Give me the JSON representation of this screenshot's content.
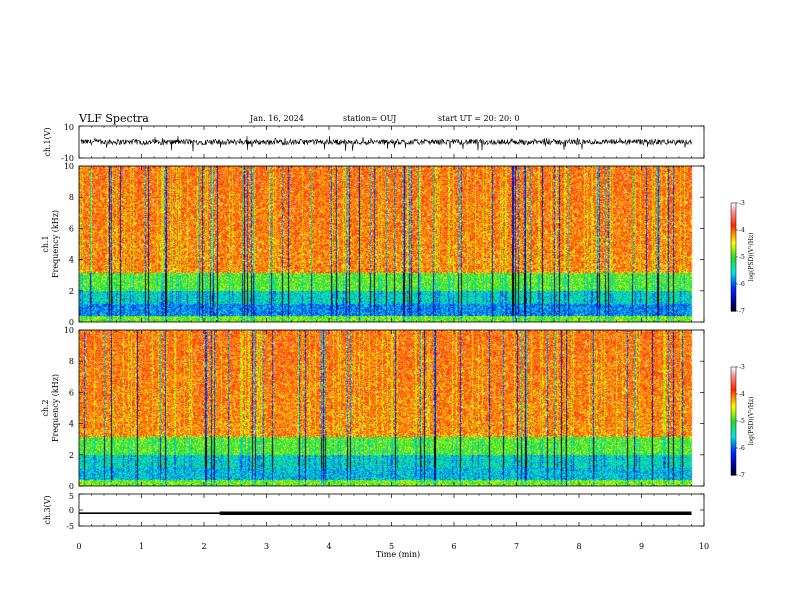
{
  "header": {
    "title": "VLF Spectra",
    "date": "Jan. 16, 2024",
    "station": "station= OUJ",
    "start": "start  UT =   20: 20: 0"
  },
  "chart_data": [
    {
      "type": "line",
      "name": "ch1-waveform",
      "ylabel": "ch.1(V)",
      "xlim": [
        0,
        10
      ],
      "ylim": [
        -10,
        10
      ],
      "yticks": [
        "10",
        "-10"
      ],
      "data_extent_min": 9.8,
      "baseline": 0,
      "spread": 3.5
    },
    {
      "type": "heatmap",
      "name": "ch1-spectrogram",
      "ylabel_line1": "ch.1",
      "ylabel_line2": "Frequency (kHz)",
      "xlim": [
        0,
        10
      ],
      "ylim": [
        0,
        10
      ],
      "yticks": [
        "0",
        "2",
        "4",
        "6",
        "8",
        "10"
      ],
      "data_extent_min": 9.8,
      "colorbar": {
        "label": "log(PSD)(V²/Hz)",
        "ticks": [
          "-3",
          "-4",
          "-5",
          "-6",
          "-7"
        ],
        "range": [
          -7,
          -3
        ]
      }
    },
    {
      "type": "heatmap",
      "name": "ch2-spectrogram",
      "ylabel_line1": "ch.2",
      "ylabel_line2": "Frequency (kHz)",
      "xlim": [
        0,
        10
      ],
      "ylim": [
        0,
        10
      ],
      "yticks": [
        "0",
        "2",
        "4",
        "6",
        "8",
        "10"
      ],
      "data_extent_min": 9.8,
      "colorbar": {
        "label": "log(PSD)(V²/Hz)",
        "ticks": [
          "-3",
          "-4",
          "-5",
          "-6",
          "-7"
        ],
        "range": [
          -7,
          -3
        ]
      }
    },
    {
      "type": "line",
      "name": "ch3-signal",
      "ylabel": "ch.3(V)",
      "xlim": [
        0,
        10
      ],
      "ylim": [
        -5,
        5
      ],
      "yticks": [
        "5",
        "0",
        "-5"
      ],
      "xticks": [
        "0",
        "1",
        "2",
        "3",
        "4",
        "5",
        "6",
        "7",
        "8",
        "9",
        "10"
      ],
      "xlabel": "Time (min)",
      "segments": [
        {
          "x": [
            0,
            2.25
          ],
          "y": -1.0
        },
        {
          "x": [
            2.25,
            9.8
          ],
          "y": -1.0
        }
      ]
    }
  ]
}
